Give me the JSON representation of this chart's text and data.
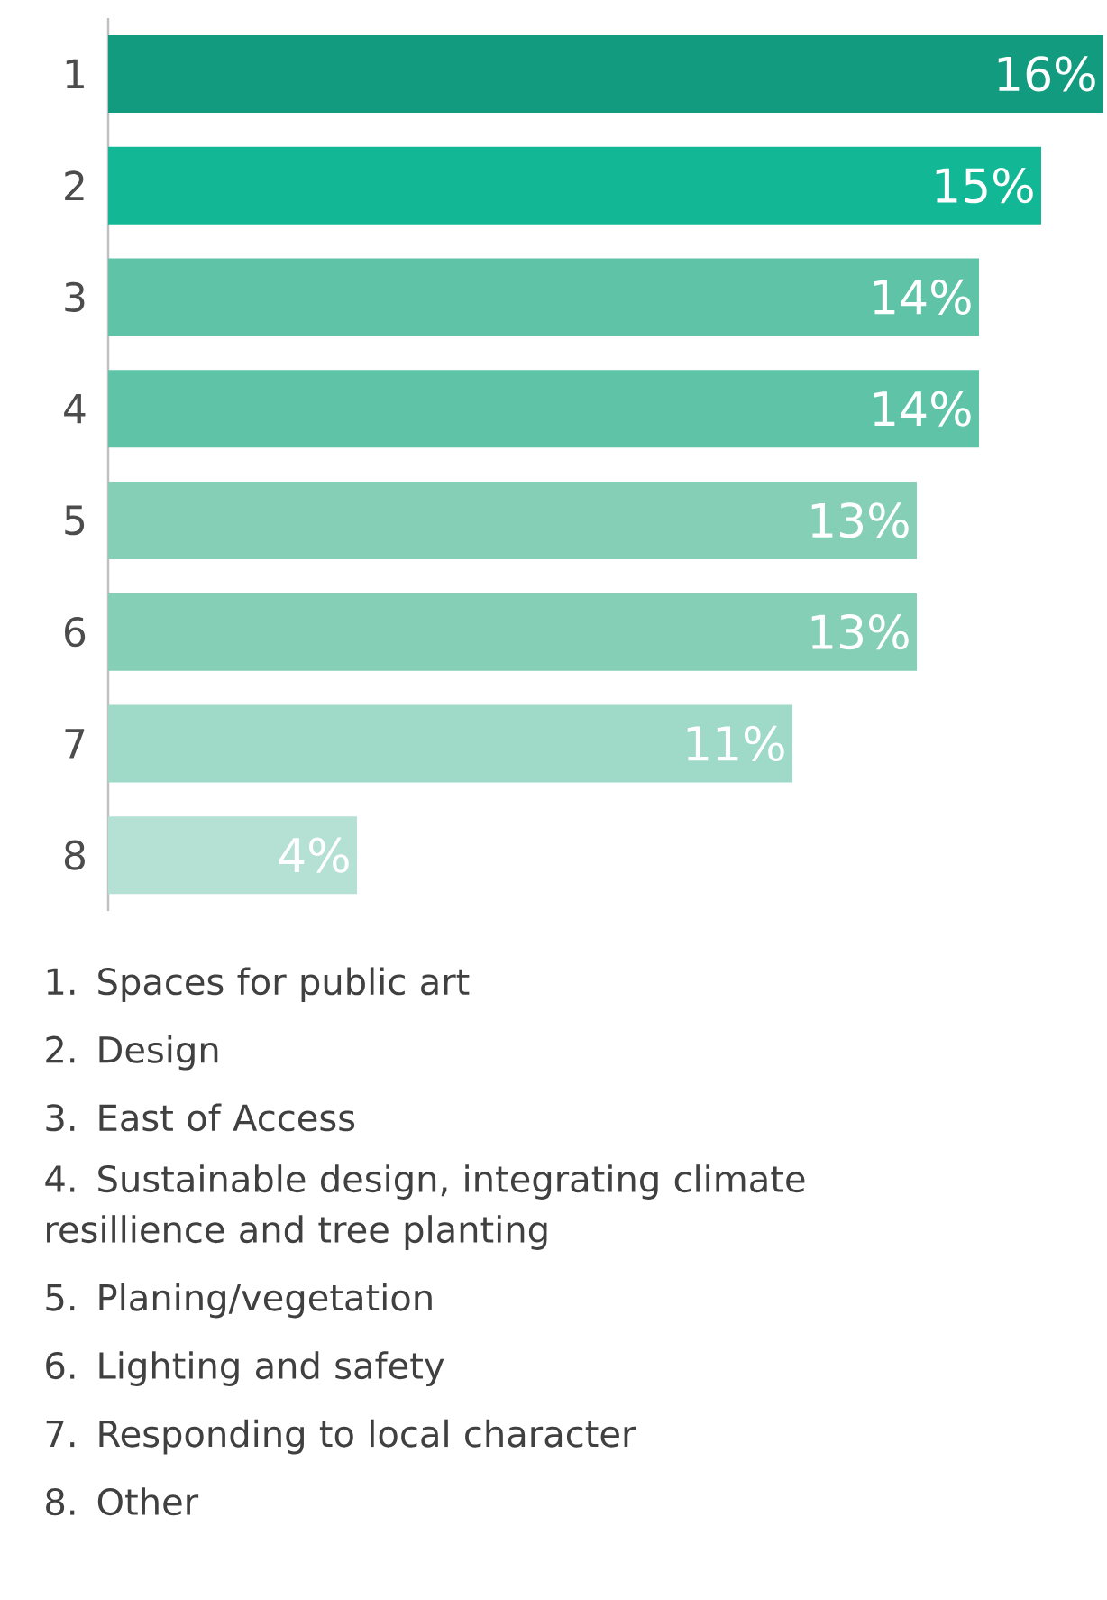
{
  "chart_data": {
    "type": "bar",
    "orientation": "horizontal",
    "categories": [
      "1",
      "2",
      "3",
      "4",
      "5",
      "6",
      "7",
      "8"
    ],
    "values": [
      16,
      15,
      14,
      14,
      13,
      13,
      11,
      4
    ],
    "value_labels": [
      "16%",
      "15%",
      "14%",
      "14%",
      "13%",
      "13%",
      "11%",
      "4%"
    ],
    "colors": [
      "#139b80",
      "#12b896",
      "#5fc4a7",
      "#5fc4a7",
      "#84cfb5",
      "#84cfb5",
      "#9fdac8",
      "#b5e0d4"
    ],
    "xlim": [
      0,
      16
    ],
    "tick_labels": "y",
    "annotations": [
      "1. Spaces for public art",
      "2. Design",
      "3. East of Access",
      "4. Sustainable design, integrating climate resillience and tree planting",
      "5. Planing/vegetation",
      "6. Lighting and safety",
      "7. Responding to local character",
      "8. Other"
    ]
  }
}
